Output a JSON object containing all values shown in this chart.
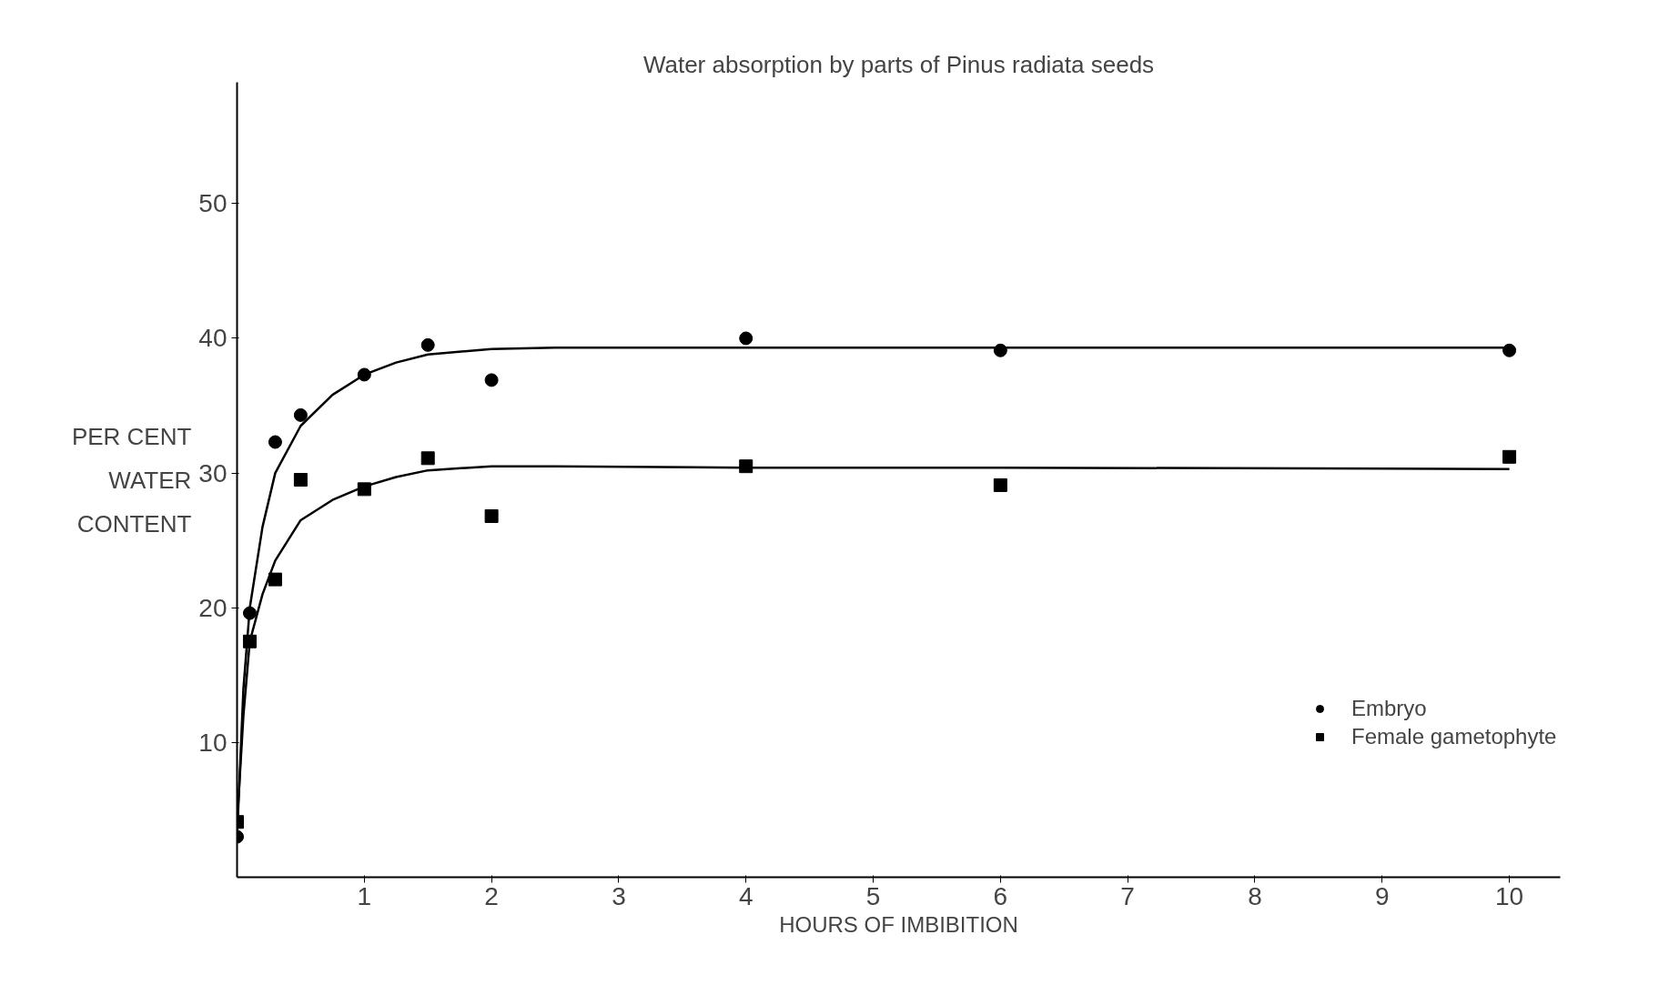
{
  "chart_data": {
    "type": "scatter",
    "title": "Water absorption by parts of Pinus radiata seeds",
    "xlabel": "HOURS OF IMBIBITION",
    "ylabel": "PER CENT\nWATER\nCONTENT",
    "xlim": [
      0,
      10.4
    ],
    "ylim": [
      0,
      59
    ],
    "xticks": [
      1,
      2,
      3,
      4,
      5,
      6,
      7,
      8,
      9,
      10
    ],
    "yticks": [
      10,
      20,
      30,
      40,
      50
    ],
    "grid": false,
    "legend": "right",
    "series": [
      {
        "name": "Embryo",
        "color": "#000000",
        "marker": "circle",
        "x": [
          0,
          0.1,
          0.3,
          0.5,
          1,
          1.5,
          2,
          4,
          6,
          10
        ],
        "values": [
          3.0,
          19.6,
          32.3,
          34.3,
          37.3,
          39.5,
          36.9,
          40.0,
          39.1,
          39.1
        ]
      },
      {
        "name": "Female gametophyte",
        "color": "#000000",
        "marker": "square",
        "x": [
          0,
          0.1,
          0.3,
          0.5,
          1,
          1.5,
          2,
          4,
          6,
          10
        ],
        "values": [
          4.1,
          17.5,
          22.1,
          29.5,
          28.8,
          31.1,
          26.8,
          30.5,
          29.1,
          31.2
        ]
      },
      {
        "type": "line",
        "color": "#000000",
        "marker": "none",
        "x": [
          0,
          0.05,
          0.1,
          0.2,
          0.3,
          0.5,
          0.75,
          1,
          1.25,
          1.5,
          2,
          2.5,
          4,
          6,
          10
        ],
        "values": [
          3,
          14,
          20,
          26,
          30,
          33.5,
          35.8,
          37.3,
          38.2,
          38.8,
          39.2,
          39.3,
          39.3,
          39.3,
          39.3
        ]
      },
      {
        "type": "line",
        "color": "#000000",
        "marker": "none",
        "x": [
          0,
          0.05,
          0.1,
          0.2,
          0.3,
          0.5,
          0.75,
          1,
          1.25,
          1.5,
          2,
          2.5,
          4,
          6,
          10
        ],
        "values": [
          4,
          12,
          17.5,
          21,
          23.5,
          26.5,
          28,
          29,
          29.7,
          30.2,
          30.5,
          30.5,
          30.4,
          30.4,
          30.3
        ]
      }
    ]
  }
}
